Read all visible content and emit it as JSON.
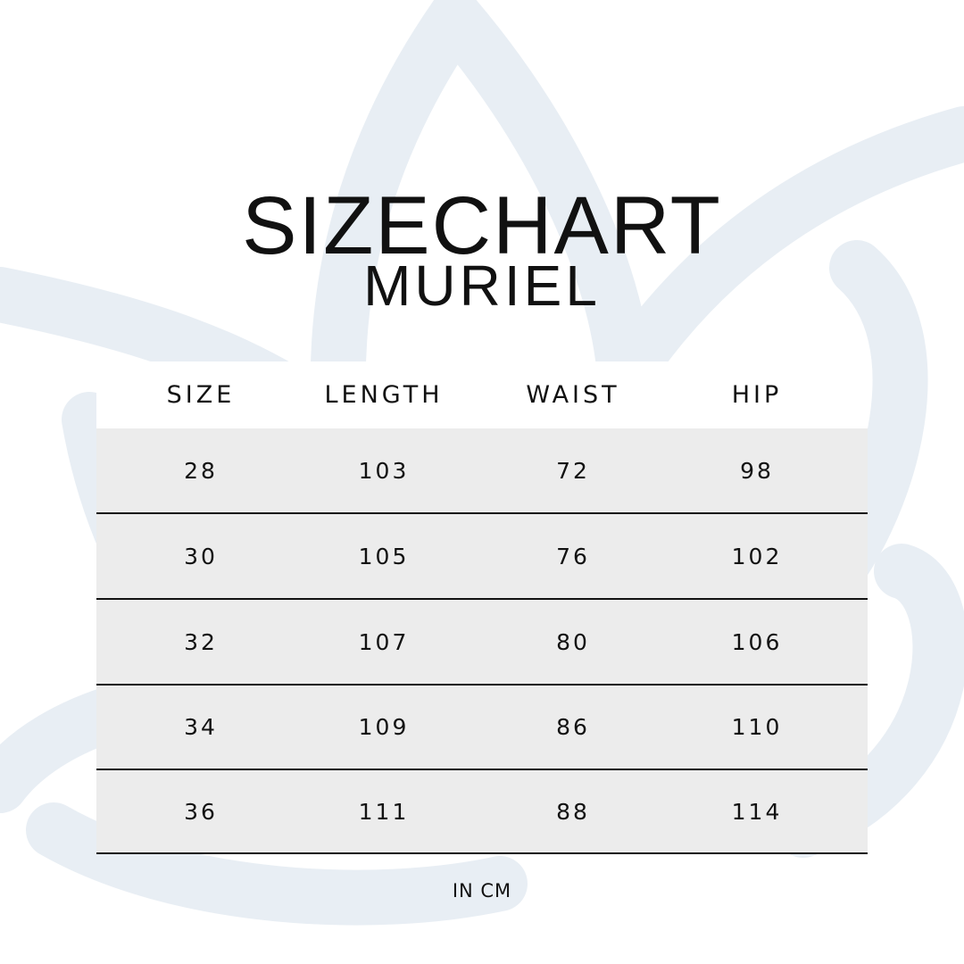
{
  "title": "SIZECHART",
  "subtitle": "MURIEL",
  "colors": {
    "watermark": "#e8eef4",
    "row_fill": "#ececec",
    "text": "#111111"
  },
  "table": {
    "headers": [
      "SIZE",
      "LENGTH",
      "WAIST",
      "HIP"
    ],
    "rows": [
      [
        "28",
        "103",
        "72",
        "98"
      ],
      [
        "30",
        "105",
        "76",
        "102"
      ],
      [
        "32",
        "107",
        "80",
        "106"
      ],
      [
        "34",
        "109",
        "86",
        "110"
      ],
      [
        "36",
        "111",
        "88",
        "114"
      ]
    ]
  },
  "unit_note": "IN CM"
}
